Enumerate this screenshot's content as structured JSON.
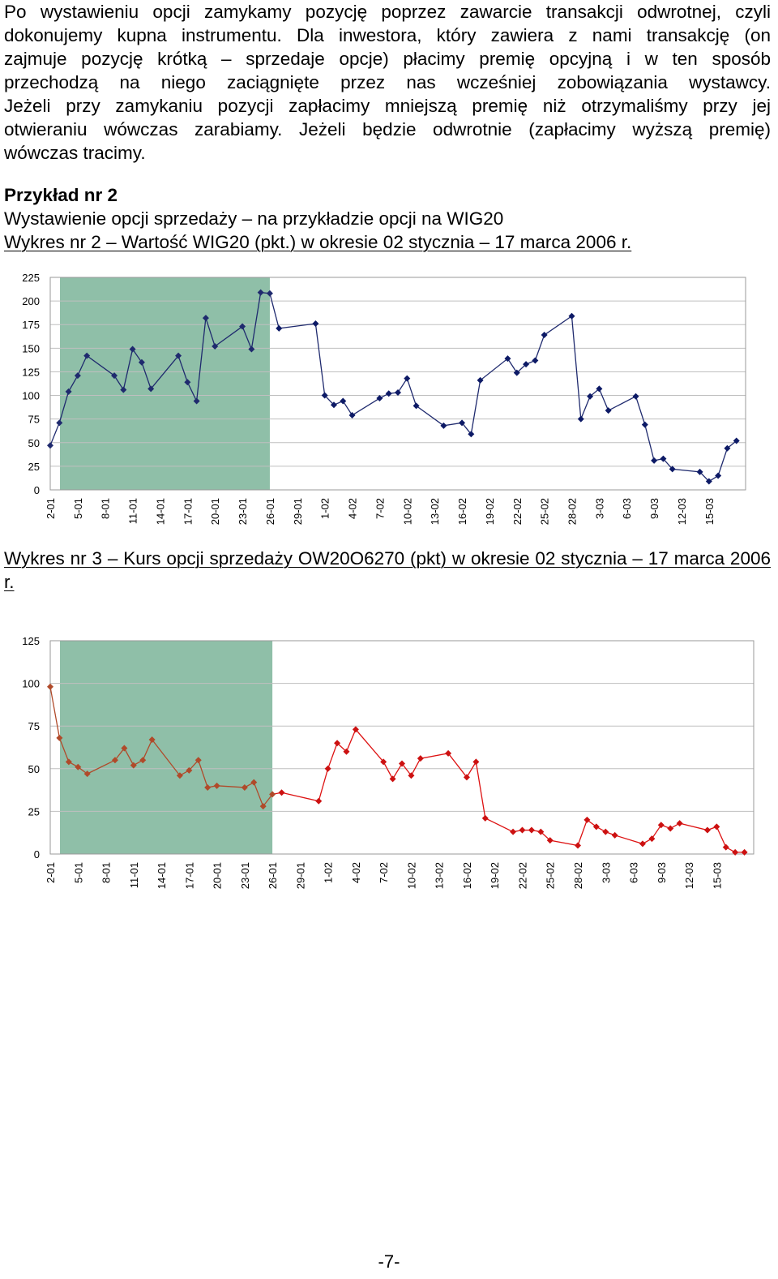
{
  "intro_lines": [
    "Po wystawieniu opcji zamykamy pozycję poprzez zawarcie transakcji odwrotnej, czyli",
    "dokonujemy kupna instrumentu. Dla inwestora, który zawiera z nami transakcję (on",
    "zajmuje pozycję krótką – sprzedaje opcje) płacimy premię opcyjną i w ten sposób",
    "przechodzą na niego zaciągnięte przez nas wcześniej zobowiązania wystawcy.",
    "Jeżeli przy zamykaniu pozycji zapłacimy mniejszą premię niż otrzymaliśmy przy jej",
    "otwieraniu wówczas zarabiamy. Jeżeli będzie odwrotnie (zapłacimy wyższą premię)",
    "wówczas tracimy."
  ],
  "example": {
    "heading": "Przykład nr 2",
    "subtitle": "Wystawienie opcji sprzedaży – na przykładzie opcji na WIG20"
  },
  "chart2_caption": "Wykres nr 2 – Wartość WIG20 (pkt.) w okresie 02 stycznia – 17 marca 2006 r.",
  "chart3_caption": "Wykres nr 3 – Kurs opcji sprzedaży OW20O6270 (pkt) w okresie 02 stycznia – 17 marca 2006 r.",
  "page_number": "-7-",
  "chart_data": [
    {
      "type": "line",
      "x_tick_labels": [
        "2-01",
        "5-01",
        "8-01",
        "11-01",
        "14-01",
        "17-01",
        "20-01",
        "23-01",
        "26-01",
        "29-01",
        "1-02",
        "4-02",
        "7-02",
        "10-02",
        "13-02",
        "16-02",
        "19-02",
        "22-02",
        "25-02",
        "28-02",
        "3-03",
        "6-03",
        "9-03",
        "12-03",
        "15-03"
      ],
      "x_range": [
        2,
        78
      ],
      "ylim": [
        0,
        225
      ],
      "yticks": [
        0,
        25,
        50,
        75,
        100,
        125,
        150,
        175,
        200,
        225
      ],
      "grid": true,
      "shaded_x_range": [
        1,
        26
      ],
      "colors": {
        "shade": "#8fbfa8",
        "line_in_shade": "#1f2a6e",
        "line": "#1f2a6e",
        "marker": "#0d1a66",
        "grid": "#bfbfbf"
      },
      "series": [
        {
          "points": [
            [
              2,
              47
            ],
            [
              3,
              71
            ],
            [
              4,
              104
            ],
            [
              5,
              121
            ],
            [
              6,
              142
            ],
            [
              9,
              121
            ],
            [
              10,
              106
            ],
            [
              11,
              149
            ],
            [
              12,
              135
            ],
            [
              13,
              107
            ],
            [
              16,
              142
            ],
            [
              17,
              114
            ],
            [
              18,
              94
            ],
            [
              19,
              182
            ],
            [
              20,
              152
            ],
            [
              23,
              173
            ],
            [
              24,
              149
            ],
            [
              25,
              209
            ],
            [
              26,
              208
            ],
            [
              27,
              171
            ],
            [
              31,
              176
            ],
            [
              32,
              100
            ],
            [
              33,
              90
            ],
            [
              34,
              94
            ],
            [
              35,
              79
            ],
            [
              38,
              97
            ],
            [
              39,
              102
            ],
            [
              40,
              103
            ],
            [
              41,
              118
            ],
            [
              42,
              89
            ],
            [
              45,
              68
            ],
            [
              47,
              71
            ],
            [
              48,
              59
            ],
            [
              49,
              116
            ],
            [
              52,
              139
            ],
            [
              53,
              124
            ],
            [
              54,
              133
            ],
            [
              55,
              137
            ],
            [
              56,
              164
            ],
            [
              59,
              184
            ],
            [
              60,
              75
            ],
            [
              61,
              99
            ],
            [
              62,
              107
            ],
            [
              63,
              84
            ],
            [
              66,
              99
            ],
            [
              67,
              69
            ],
            [
              68,
              31
            ],
            [
              69,
              33
            ],
            [
              70,
              22
            ],
            [
              73,
              19
            ],
            [
              74,
              9
            ],
            [
              75,
              15
            ],
            [
              76,
              44
            ],
            [
              77,
              52
            ]
          ]
        }
      ]
    },
    {
      "type": "line",
      "x_tick_labels": [
        "2-01",
        "5-01",
        "8-01",
        "11-01",
        "14-01",
        "17-01",
        "20-01",
        "23-01",
        "26-01",
        "29-01",
        "1-02",
        "4-02",
        "7-02",
        "10-02",
        "13-02",
        "16-02",
        "19-02",
        "22-02",
        "25-02",
        "28-02",
        "3-03",
        "6-03",
        "9-03",
        "12-03",
        "15-03"
      ],
      "x_range": [
        2,
        78
      ],
      "ylim": [
        0,
        125
      ],
      "yticks": [
        0,
        25,
        50,
        75,
        100,
        125
      ],
      "grid": true,
      "shaded_x_range": [
        1,
        26
      ],
      "colors": {
        "shade": "#8fbfa8",
        "line_in_shade": "#b04a2a",
        "line": "#dd1111",
        "marker": "#cc1111",
        "grid": "#bfbfbf"
      },
      "series": [
        {
          "points": [
            [
              2,
              98
            ],
            [
              3,
              68
            ],
            [
              4,
              54
            ],
            [
              5,
              51
            ],
            [
              6,
              47
            ],
            [
              9,
              55
            ],
            [
              10,
              62
            ],
            [
              11,
              52
            ],
            [
              12,
              55
            ],
            [
              13,
              67
            ],
            [
              16,
              46
            ],
            [
              17,
              49
            ],
            [
              18,
              55
            ],
            [
              19,
              39
            ],
            [
              20,
              40
            ],
            [
              23,
              39
            ],
            [
              24,
              42
            ],
            [
              25,
              28
            ],
            [
              26,
              35
            ],
            [
              27,
              36
            ],
            [
              31,
              31
            ],
            [
              32,
              50
            ],
            [
              33,
              65
            ],
            [
              34,
              60
            ],
            [
              35,
              73
            ],
            [
              38,
              54
            ],
            [
              39,
              44
            ],
            [
              40,
              53
            ],
            [
              41,
              46
            ],
            [
              42,
              56
            ],
            [
              45,
              59
            ],
            [
              47,
              45
            ],
            [
              48,
              54
            ],
            [
              49,
              21
            ],
            [
              52,
              13
            ],
            [
              53,
              14
            ],
            [
              54,
              14
            ],
            [
              55,
              13
            ],
            [
              56,
              8
            ],
            [
              59,
              5
            ],
            [
              60,
              20
            ],
            [
              61,
              16
            ],
            [
              62,
              13
            ],
            [
              63,
              11
            ],
            [
              66,
              6
            ],
            [
              67,
              9
            ],
            [
              68,
              17
            ],
            [
              69,
              15
            ],
            [
              70,
              18
            ],
            [
              73,
              14
            ],
            [
              74,
              16
            ],
            [
              75,
              4
            ],
            [
              76,
              1
            ],
            [
              77,
              1
            ]
          ]
        }
      ]
    }
  ]
}
